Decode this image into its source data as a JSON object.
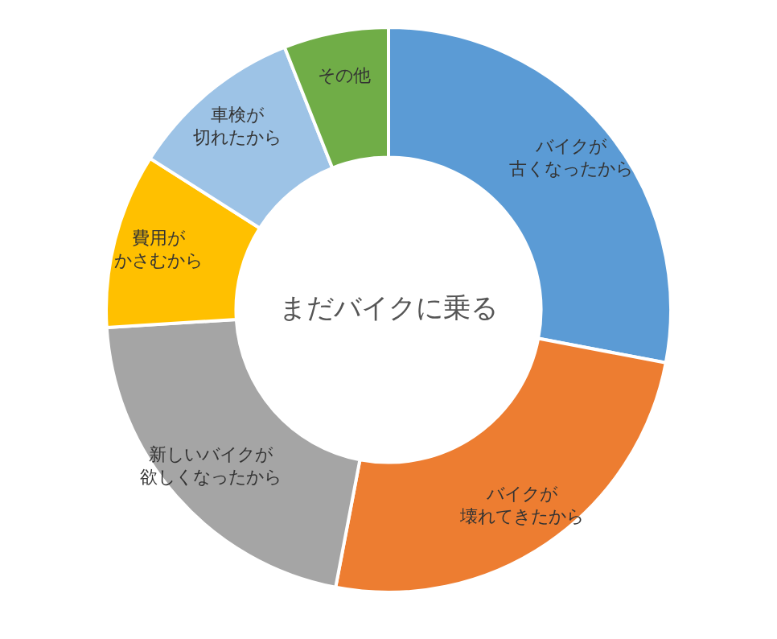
{
  "chart_data": {
    "type": "donut",
    "title": "まだバイクに乗る",
    "categories": [
      "バイクが古くなったから",
      "バイクが壊れてきたから",
      "新しいバイクが欲しくなったから",
      "費用がかさむから",
      "車検が切れたから",
      "その他"
    ],
    "values": [
      28,
      25,
      21,
      10,
      10,
      6
    ],
    "colors": [
      "#5b9bd5",
      "#ed7d31",
      "#a5a5a5",
      "#ffc000",
      "#9dc3e6",
      "#70ad47"
    ],
    "legend": false
  }
}
